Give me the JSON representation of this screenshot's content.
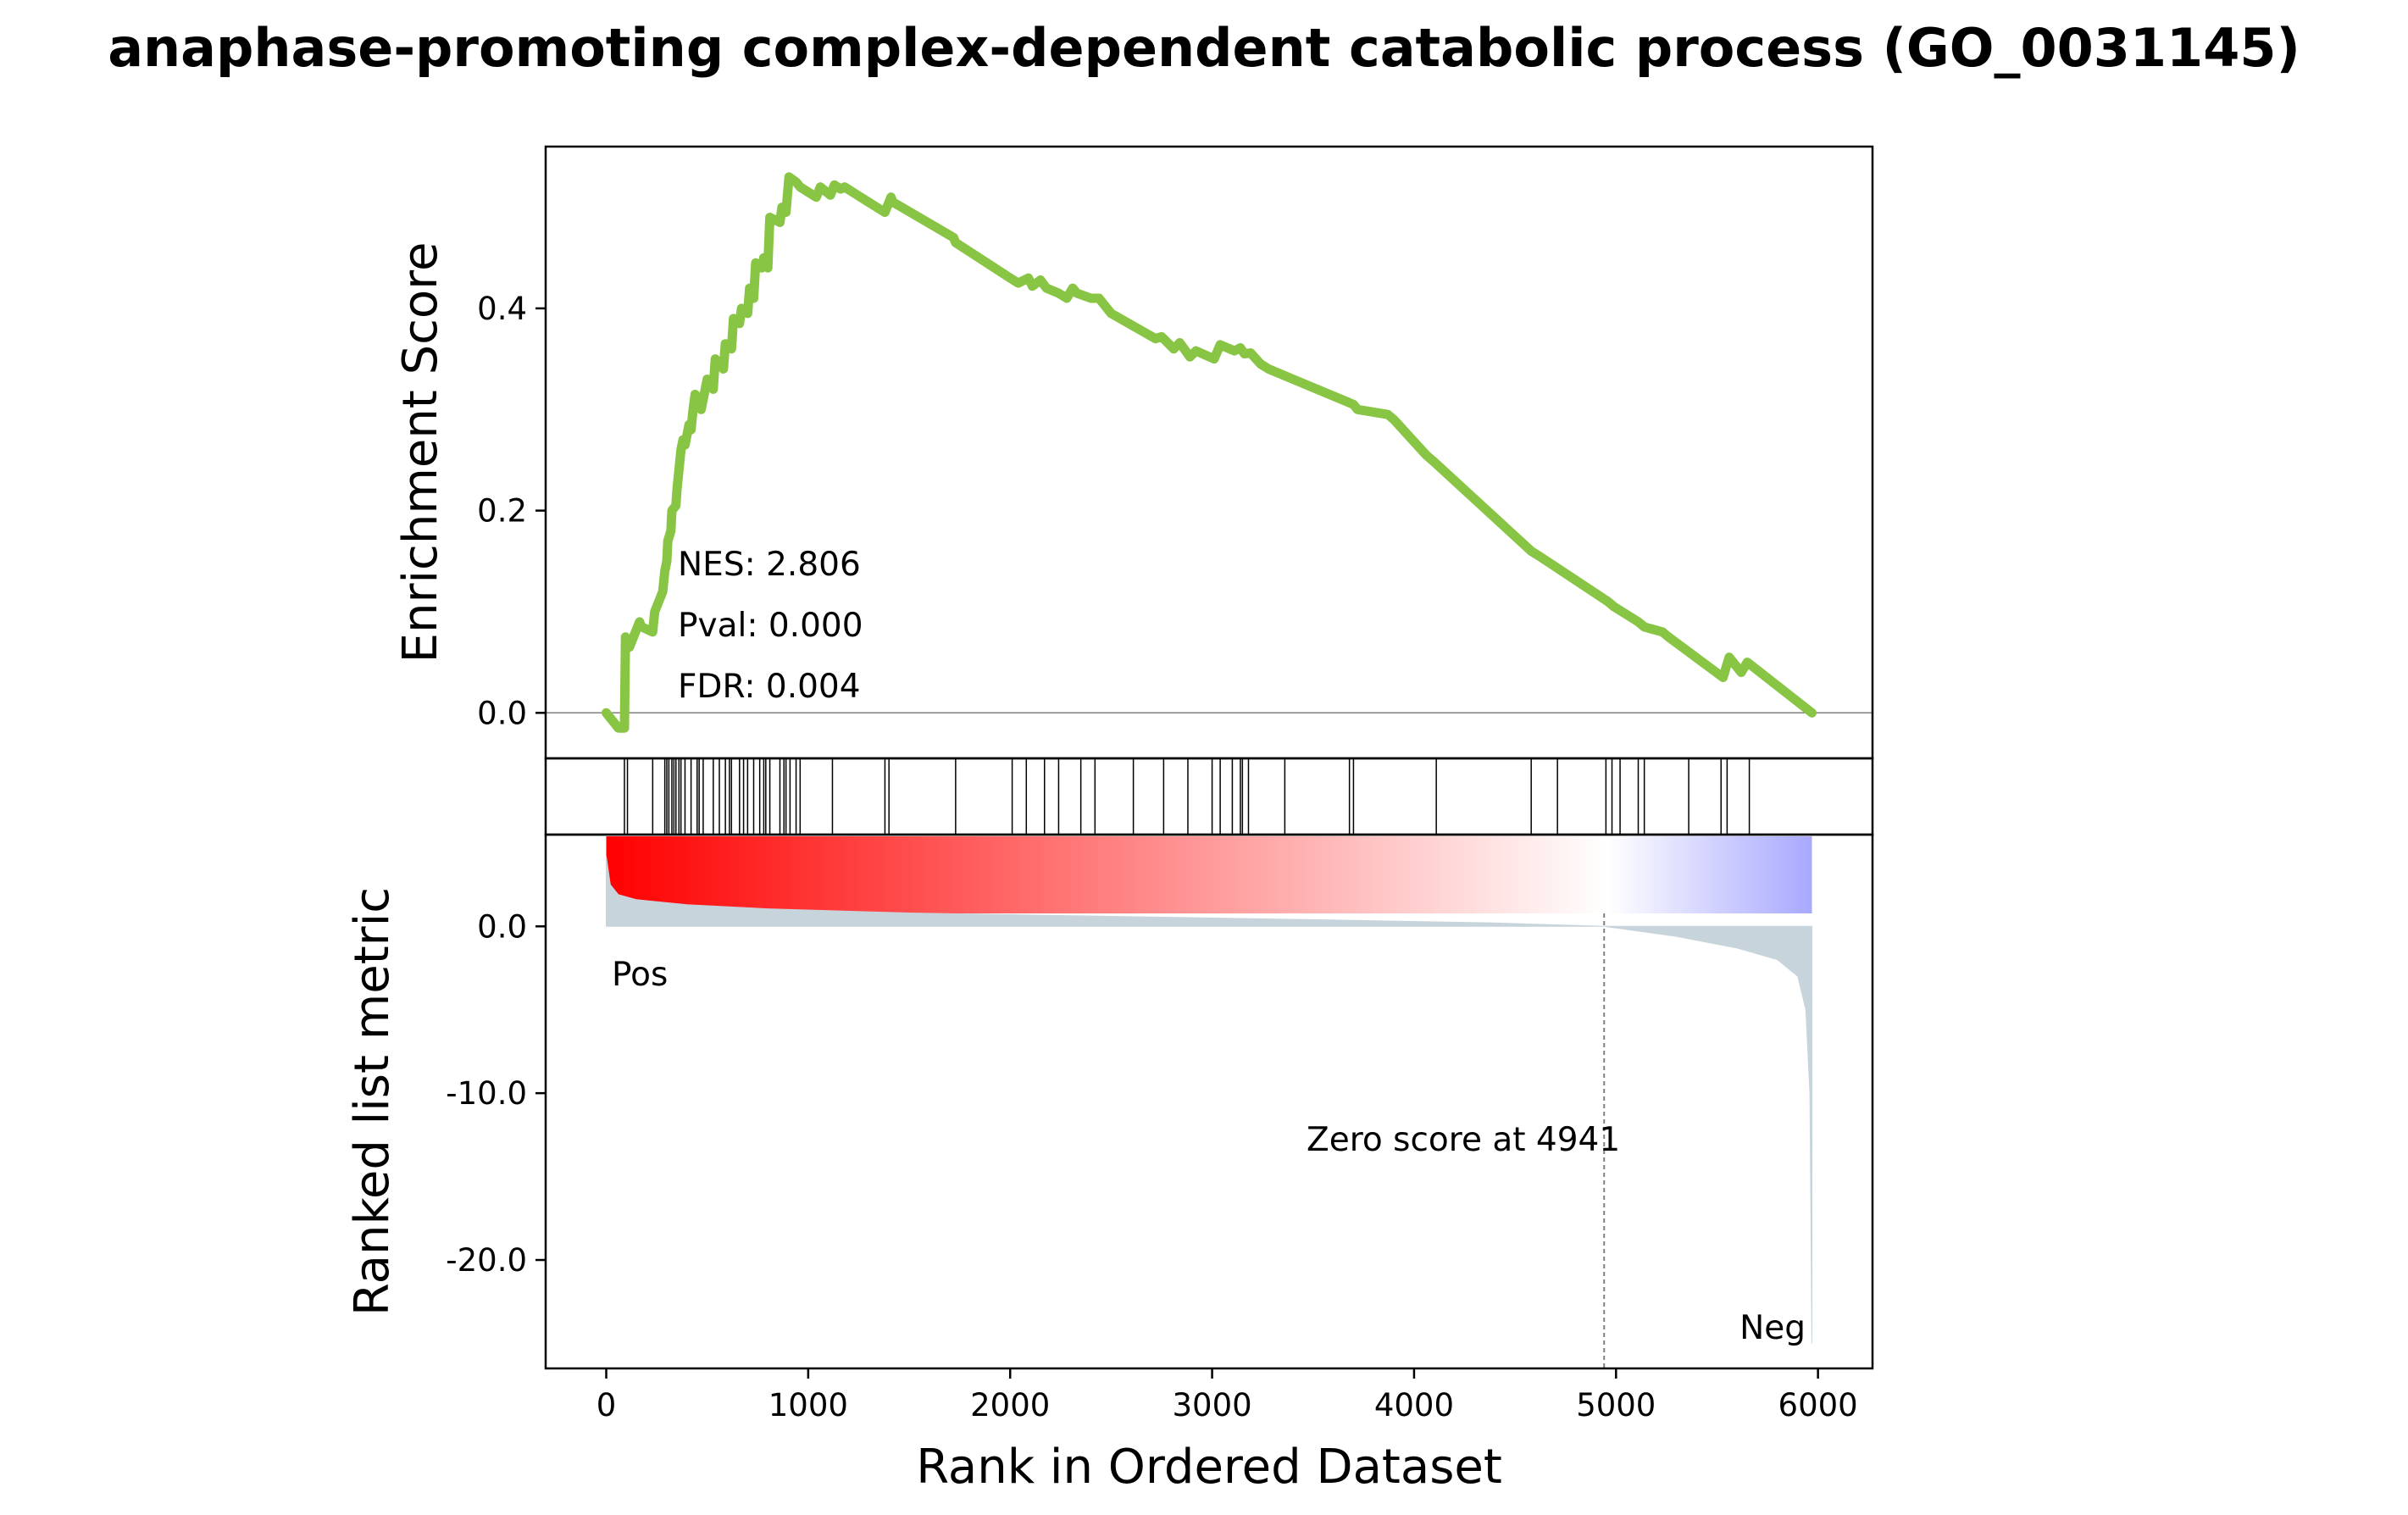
{
  "chart_data": {
    "type": "line",
    "title": "anaphase-promoting complex-dependent catabolic process (GO_0031145)",
    "xlabel": "Rank in Ordered Dataset",
    "xlim": [
      -300,
      6270
    ],
    "x_ticks": [
      "0",
      "1000",
      "2000",
      "3000",
      "4000",
      "5000",
      "6000"
    ],
    "x_tick_values": [
      0,
      1000,
      2000,
      3000,
      4000,
      5000,
      6000
    ],
    "enrichment": {
      "ylabel": "Enrichment Score",
      "ylim": [
        -0.045,
        0.56
      ],
      "y_ticks": [
        "0.0",
        "0.2",
        "0.4"
      ],
      "y_tick_values": [
        0,
        0.2,
        0.4
      ],
      "line_color": "#88c544",
      "zero_line_color": "#808080",
      "series": [
        {
          "x": [
            0,
            60,
            90,
            95,
            110,
            115,
            165,
            175,
            230,
            240,
            280,
            290,
            300,
            305,
            320,
            325,
            345,
            350,
            360,
            370,
            380,
            390,
            410,
            420,
            430,
            440,
            460,
            470,
            490,
            500,
            530,
            540,
            580,
            590,
            620,
            630,
            660,
            670,
            700,
            710,
            730,
            740,
            770,
            780,
            800,
            810,
            860,
            870,
            890,
            905,
            940,
            960,
            1040,
            1060,
            1110,
            1130,
            1160,
            1180,
            1260,
            1380,
            1410,
            1420,
            1720,
            1730,
            2000,
            2040,
            2090,
            2110,
            2150,
            2180,
            2240,
            2280,
            2310,
            2330,
            2400,
            2440,
            2500,
            2720,
            2750,
            2810,
            2840,
            2890,
            2920,
            3010,
            3040,
            3110,
            3140,
            3160,
            3190,
            3240,
            3280,
            3700,
            3720,
            3870,
            3900,
            4060,
            4100,
            4580,
            4620,
            4960,
            4990,
            5110,
            5140,
            5230,
            5260,
            5530,
            5560,
            5620,
            5650,
            5970
          ],
          "y": [
            0.0,
            -0.015,
            -0.015,
            0.075,
            0.07,
            0.065,
            0.09,
            0.085,
            0.08,
            0.1,
            0.12,
            0.14,
            0.15,
            0.17,
            0.18,
            0.2,
            0.205,
            0.22,
            0.24,
            0.26,
            0.27,
            0.265,
            0.285,
            0.28,
            0.3,
            0.315,
            0.31,
            0.3,
            0.32,
            0.33,
            0.32,
            0.35,
            0.34,
            0.365,
            0.36,
            0.39,
            0.385,
            0.4,
            0.395,
            0.42,
            0.41,
            0.445,
            0.44,
            0.45,
            0.44,
            0.49,
            0.485,
            0.5,
            0.495,
            0.53,
            0.525,
            0.52,
            0.51,
            0.52,
            0.512,
            0.522,
            0.518,
            0.52,
            0.51,
            0.495,
            0.51,
            0.505,
            0.47,
            0.465,
            0.43,
            0.425,
            0.43,
            0.422,
            0.428,
            0.42,
            0.415,
            0.41,
            0.42,
            0.415,
            0.41,
            0.41,
            0.395,
            0.37,
            0.372,
            0.36,
            0.366,
            0.352,
            0.358,
            0.35,
            0.364,
            0.358,
            0.361,
            0.355,
            0.356,
            0.345,
            0.34,
            0.305,
            0.3,
            0.295,
            0.29,
            0.255,
            0.248,
            0.16,
            0.155,
            0.11,
            0.105,
            0.09,
            0.085,
            0.08,
            0.075,
            0.035,
            0.055,
            0.04,
            0.05,
            0.0
          ]
        }
      ],
      "annotations": {
        "nes": "NES: 2.806",
        "pval": "Pval: 0.000",
        "fdr": "FDR: 0.004"
      }
    },
    "hits": {
      "ranks": [
        90,
        105,
        230,
        290,
        300,
        310,
        325,
        335,
        345,
        360,
        370,
        390,
        420,
        450,
        460,
        480,
        530,
        560,
        590,
        610,
        620,
        660,
        680,
        700,
        730,
        760,
        780,
        790,
        810,
        860,
        880,
        890,
        910,
        940,
        960,
        1120,
        1380,
        1400,
        1730,
        2010,
        2080,
        2170,
        2240,
        2350,
        2420,
        2610,
        2760,
        2880,
        3000,
        3040,
        3100,
        3140,
        3150,
        3180,
        3360,
        3680,
        3700,
        4110,
        4580,
        4710,
        4950,
        4980,
        5020,
        5110,
        5140,
        5360,
        5520,
        5550,
        5660
      ]
    },
    "ranked_metric": {
      "ylabel": "Ranked list metric",
      "ylim": [
        -26.5,
        5.5
      ],
      "y_ticks": [
        "0.0",
        "-10.0",
        "-20.0"
      ],
      "y_tick_values": [
        0,
        -10,
        -20
      ],
      "fill_color": "#c8d4dc",
      "x": [
        0,
        20,
        60,
        150,
        400,
        800,
        1500,
        2500,
        3500,
        4400,
        4941,
        5300,
        5600,
        5800,
        5900,
        5940,
        5960,
        5970
      ],
      "y": [
        4.2,
        2.5,
        1.9,
        1.6,
        1.3,
        1.05,
        0.8,
        0.6,
        0.4,
        0.2,
        0.0,
        -0.6,
        -1.3,
        -2.0,
        -3.0,
        -5.0,
        -10.0,
        -25.0
      ],
      "pos_label": "Pos",
      "neg_label": "Neg",
      "pos_color": "#ff0000",
      "neg_color": "#0000ff",
      "zero_cross_rank": 4941,
      "zero_cross_text": "Zero score at 4941",
      "colorbar": {
        "colors": [
          "#ff0000",
          "#ffffff",
          "#a8a8ff"
        ],
        "stops": [
          0,
          0.83,
          1.0
        ],
        "x_range": [
          0,
          5970
        ]
      }
    }
  }
}
